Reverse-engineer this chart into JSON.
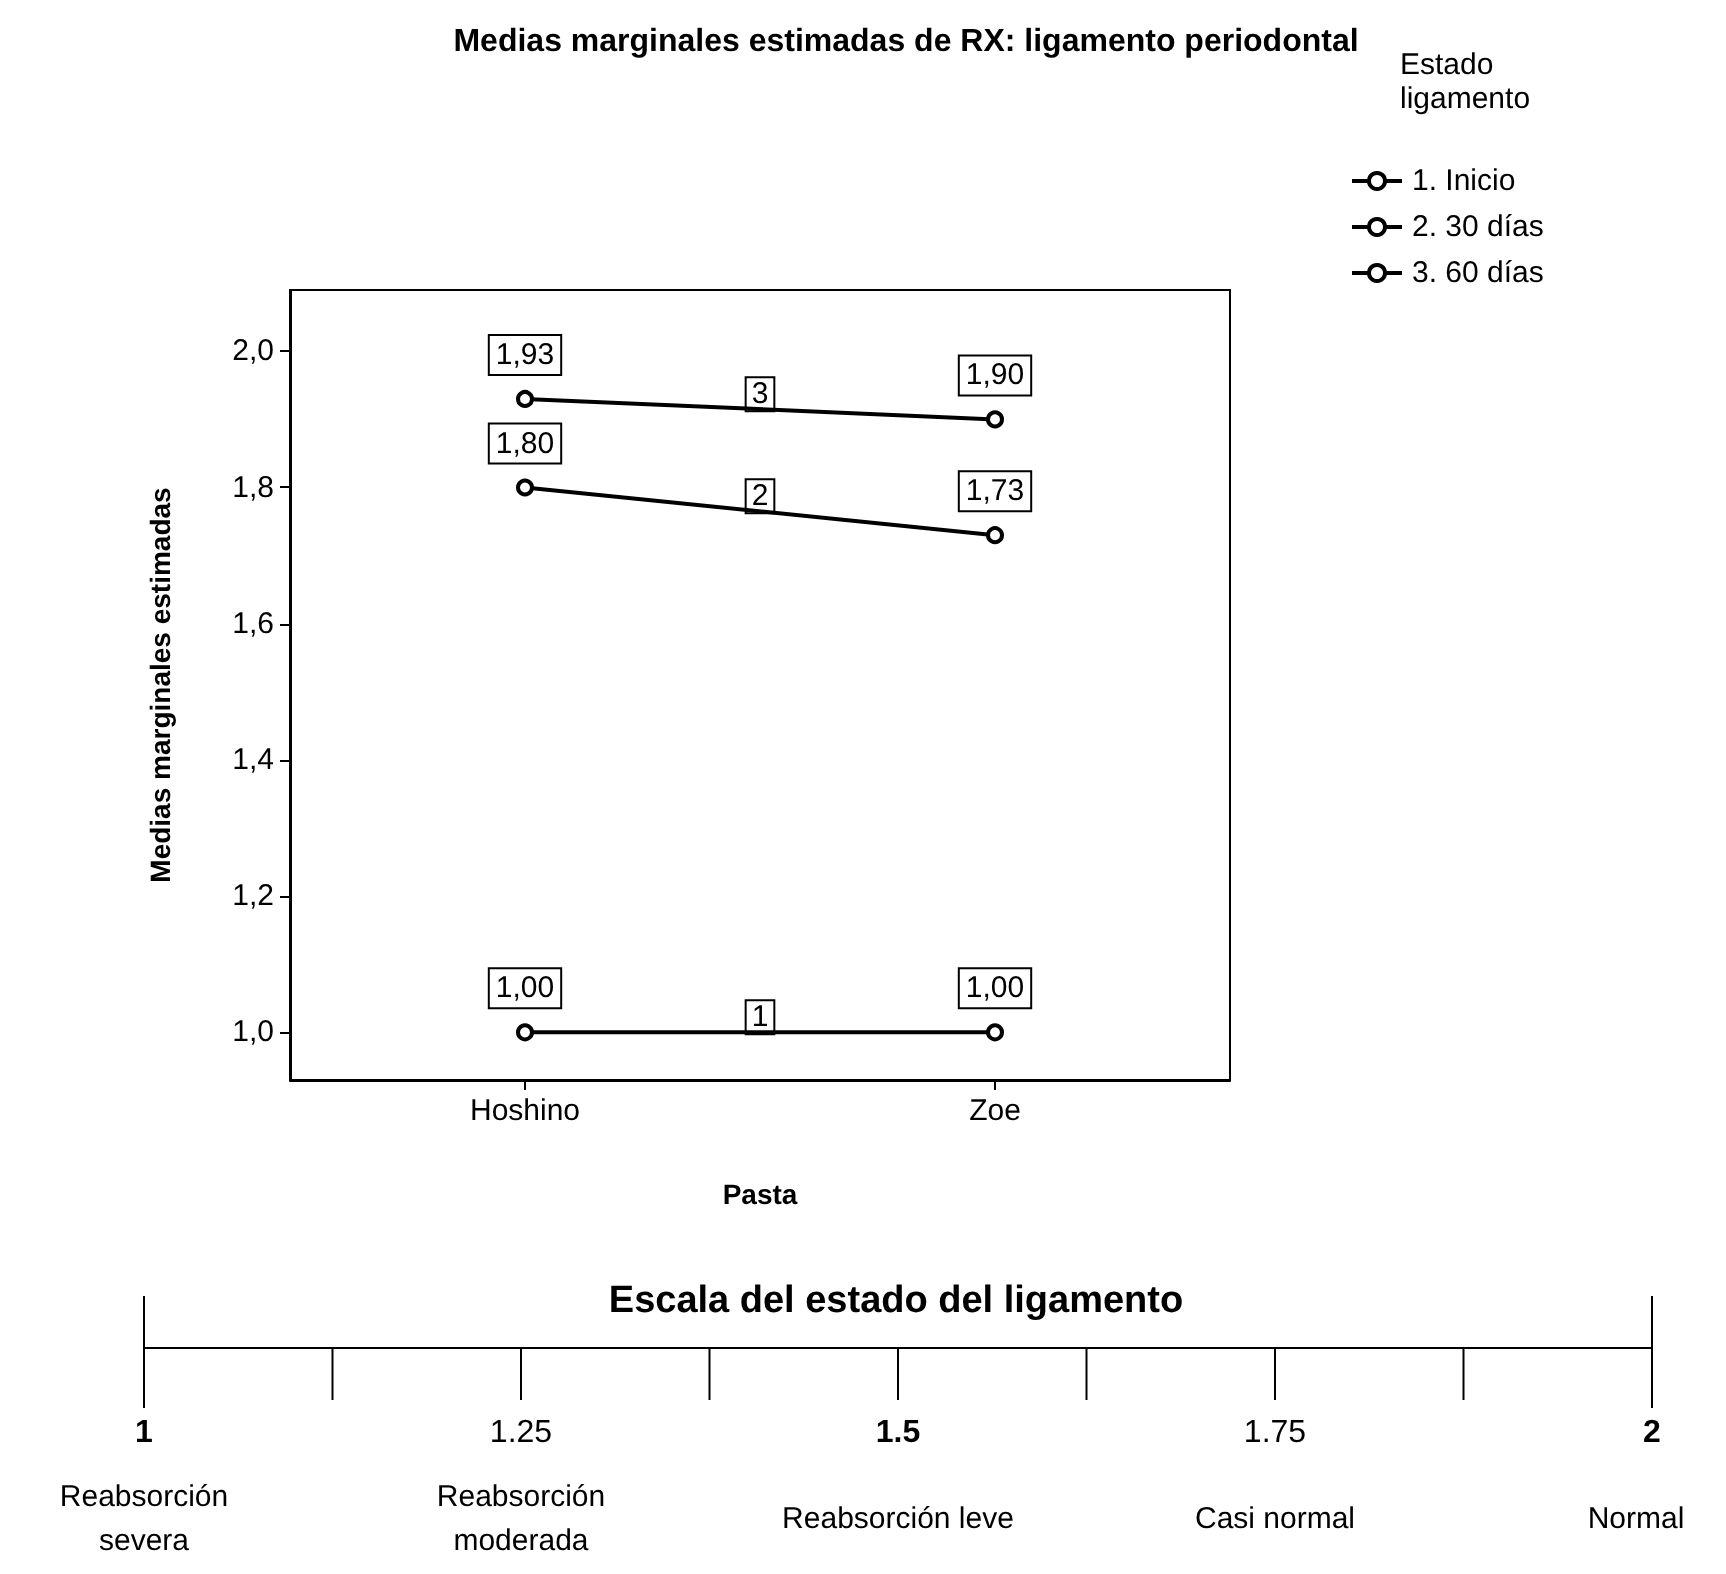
{
  "chart_data": {
    "type": "line",
    "title": "Medias marginales estimadas de RX: ligamento periodontal",
    "xlabel": "Pasta",
    "ylabel": "Medias marginales estimadas",
    "legend_title": "Estado ligamento",
    "categories": [
      "Hoshino",
      "Zoe"
    ],
    "series": [
      {
        "name": "1. Inicio",
        "color": "#000000",
        "values": [
          1.0,
          1.0
        ],
        "value_labels": [
          "1,00",
          "1,00"
        ]
      },
      {
        "name": "2. 30 días",
        "color": "#000000",
        "values": [
          1.8,
          1.73
        ],
        "value_labels": [
          "1,80",
          "1,73"
        ]
      },
      {
        "name": "3. 60 días",
        "color": "#000000",
        "values": [
          1.93,
          1.9
        ],
        "value_labels": [
          "1,93",
          "1,90"
        ]
      }
    ],
    "annotations": [
      "1",
      "2",
      "3",
      "Escala del estado del ligamento",
      "1",
      "Reabsorción\nsevera",
      "1.25",
      "Reabsorción\nmoderada",
      "1.5",
      "Reabsorción leve",
      "1.75",
      "Casi normal",
      "2",
      "Normal"
    ],
    "ylim": [
      0.93,
      2.09
    ],
    "yticks": [
      {
        "value": 1,
        "label": "1,0"
      },
      {
        "value": 1.2,
        "label": "1,2"
      },
      {
        "value": 1.4,
        "label": "1,4"
      },
      {
        "value": 1.6,
        "label": "1,6"
      },
      {
        "value": 1.8,
        "label": "1,8"
      },
      {
        "value": 2,
        "label": "2,0"
      }
    ],
    "grid": false,
    "legend": "top right",
    "marker": "circle",
    "line_style": "solid"
  }
}
